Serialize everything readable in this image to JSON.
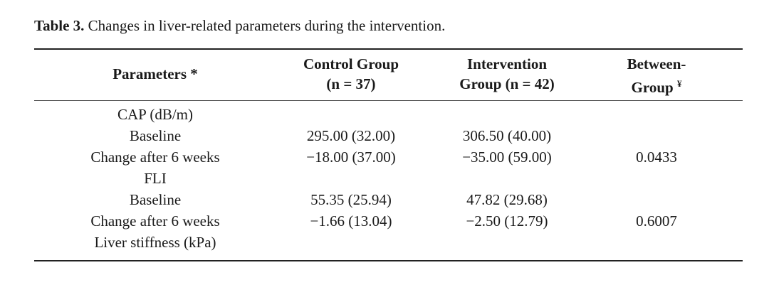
{
  "caption": {
    "label": "Table 3.",
    "text": " Changes in liver-related parameters during the intervention."
  },
  "table": {
    "headers": {
      "parameters": "Parameters *",
      "control_line1": "Control Group",
      "control_line2": "(n = 37)",
      "intervention_line1": "Intervention",
      "intervention_line2": "Group (n = 42)",
      "between_line1": "Between-",
      "between_line2": "Group",
      "between_mark": "¥"
    },
    "rows": [
      {
        "param": "CAP (dB/m)",
        "control": "",
        "intervention": "",
        "between": ""
      },
      {
        "param": "Baseline",
        "control": "295.00 (32.00)",
        "intervention": "306.50 (40.00)",
        "between": ""
      },
      {
        "param": "Change after 6 weeks",
        "control": "−18.00 (37.00)",
        "intervention": "−35.00 (59.00)",
        "between": "0.0433"
      },
      {
        "param": "FLI",
        "control": "",
        "intervention": "",
        "between": ""
      },
      {
        "param": "Baseline",
        "control": "55.35 (25.94)",
        "intervention": "47.82 (29.68)",
        "between": ""
      },
      {
        "param": "Change after 6 weeks",
        "control": "−1.66 (13.04)",
        "intervention": "−2.50 (12.79)",
        "between": "0.6007"
      },
      {
        "param": "Liver stiffness (kPa)",
        "control": "",
        "intervention": "",
        "between": ""
      }
    ]
  }
}
